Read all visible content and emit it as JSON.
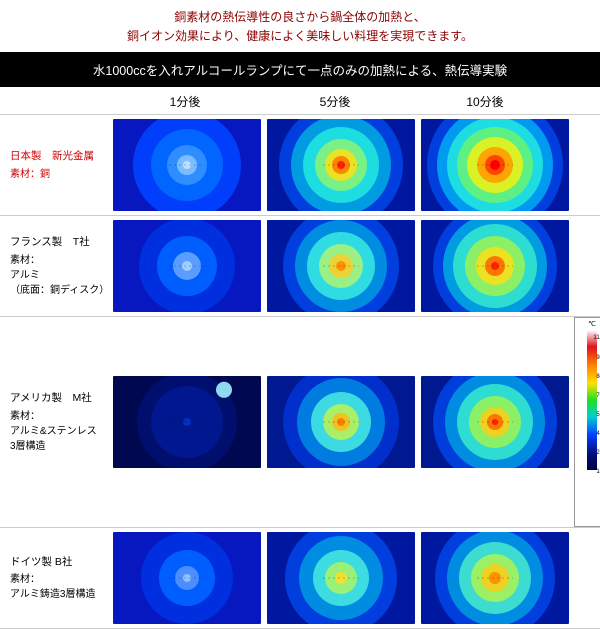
{
  "header": {
    "line1": "銅素材の熱伝導性の良さから鍋全体の加熱と、",
    "line2": "銅イオン効果により、健康によく美味しい料理を実現できます。",
    "line1_color": "#8b0000",
    "line2_color": "#8b0000"
  },
  "title_bar": "水1000ccを入れアルコールランプにて一点のみの加熱による、熱伝導実験",
  "time_headers": [
    "1分後",
    "5分後",
    "10分後"
  ],
  "rows": [
    {
      "maker": "日本製　新光金属",
      "material": "素材：銅",
      "red": true,
      "cells": [
        {
          "bg": "#0818c0",
          "rings": [
            {
              "r": 54,
              "c": "#0040ff"
            },
            {
              "r": 36,
              "c": "#0068ff"
            },
            {
              "r": 20,
              "c": "#3090ff"
            },
            {
              "r": 10,
              "c": "#80c0ff"
            }
          ],
          "core": {
            "r": 4,
            "c": "#c0e0ff"
          }
        },
        {
          "bg": "#0018a0",
          "rings": [
            {
              "r": 62,
              "c": "#0040e0"
            },
            {
              "r": 50,
              "c": "#00a0e0"
            },
            {
              "r": 38,
              "c": "#20e0e0"
            },
            {
              "r": 26,
              "c": "#80f080"
            },
            {
              "r": 16,
              "c": "#f0e020"
            },
            {
              "r": 9,
              "c": "#ff8000"
            }
          ],
          "core": {
            "r": 4,
            "c": "#ff2000"
          }
        },
        {
          "bg": "#0018a0",
          "rings": [
            {
              "r": 68,
              "c": "#0040e0"
            },
            {
              "r": 58,
              "c": "#00a0f0"
            },
            {
              "r": 48,
              "c": "#20e0e0"
            },
            {
              "r": 38,
              "c": "#60f080"
            },
            {
              "r": 28,
              "c": "#e0f020"
            },
            {
              "r": 18,
              "c": "#ffa000"
            },
            {
              "r": 10,
              "c": "#ff4000"
            }
          ],
          "core": {
            "r": 5,
            "c": "#ff0000"
          }
        }
      ]
    },
    {
      "maker": "フランス製　T社",
      "material": "素材：<br>アルミ<br>（底面：銅ディスク）",
      "red": false,
      "cells": [
        {
          "bg": "#0818c0",
          "rings": [
            {
              "r": 48,
              "c": "#0030e0"
            },
            {
              "r": 30,
              "c": "#0060ff"
            },
            {
              "r": 14,
              "c": "#60a0ff"
            }
          ],
          "core": {
            "r": 5,
            "c": "#a0d0ff"
          }
        },
        {
          "bg": "#0018a0",
          "rings": [
            {
              "r": 58,
              "c": "#0040e0"
            },
            {
              "r": 46,
              "c": "#0090e0"
            },
            {
              "r": 34,
              "c": "#30e0e0"
            },
            {
              "r": 22,
              "c": "#a0f080"
            },
            {
              "r": 12,
              "c": "#f0d030"
            }
          ],
          "core": {
            "r": 5,
            "c": "#ff9000"
          }
        },
        {
          "bg": "#0018a0",
          "rings": [
            {
              "r": 62,
              "c": "#0040e0"
            },
            {
              "r": 52,
              "c": "#00a0e0"
            },
            {
              "r": 42,
              "c": "#30e0d0"
            },
            {
              "r": 30,
              "c": "#90f060"
            },
            {
              "r": 19,
              "c": "#f0e020"
            },
            {
              "r": 10,
              "c": "#ff7000"
            }
          ],
          "core": {
            "r": 4,
            "c": "#ff2000"
          }
        }
      ]
    },
    {
      "maker": "アメリカ製　M社",
      "material": "素材：<br>アルミ&ステンレス<br>3層構造",
      "red": false,
      "cells": [
        {
          "bg": "#000850",
          "rings": [
            {
              "r": 50,
              "c": "#001070"
            },
            {
              "r": 36,
              "c": "#001890",
              "edge": true
            }
          ],
          "core": {
            "r": 4,
            "c": "#0030c0"
          },
          "spot": {
            "x": 75,
            "y": 15,
            "r": 8,
            "c": "#a0f0ff"
          }
        },
        {
          "bg": "#001890",
          "rings": [
            {
              "r": 58,
              "c": "#0030d0"
            },
            {
              "r": 44,
              "c": "#0080e0"
            },
            {
              "r": 30,
              "c": "#40e0e0"
            },
            {
              "r": 18,
              "c": "#b0f060"
            },
            {
              "r": 9,
              "c": "#f0c020"
            }
          ],
          "core": {
            "r": 4,
            "c": "#ff8000"
          }
        },
        {
          "bg": "#001890",
          "rings": [
            {
              "r": 62,
              "c": "#0040e0"
            },
            {
              "r": 50,
              "c": "#0090e0"
            },
            {
              "r": 38,
              "c": "#30e0d0"
            },
            {
              "r": 26,
              "c": "#90f060"
            },
            {
              "r": 15,
              "c": "#f0d020"
            },
            {
              "r": 8,
              "c": "#ff7000"
            }
          ],
          "core": {
            "r": 3,
            "c": "#ff2000"
          }
        }
      ]
    },
    {
      "maker": "ドイツ製 B社",
      "material": "素材：<br>アルミ鋳造3層構造",
      "red": false,
      "cells": [
        {
          "bg": "#0818c0",
          "rings": [
            {
              "r": 46,
              "c": "#0030e0"
            },
            {
              "r": 28,
              "c": "#0060ff"
            },
            {
              "r": 12,
              "c": "#5090ff"
            }
          ],
          "core": {
            "r": 4,
            "c": "#90c0ff"
          }
        },
        {
          "bg": "#0018a0",
          "rings": [
            {
              "r": 56,
              "c": "#0040e0"
            },
            {
              "r": 42,
              "c": "#0090e0"
            },
            {
              "r": 28,
              "c": "#40e0e0"
            },
            {
              "r": 16,
              "c": "#a0f070"
            }
          ],
          "core": {
            "r": 6,
            "c": "#f0e030"
          }
        },
        {
          "bg": "#0018a0",
          "rings": [
            {
              "r": 60,
              "c": "#0040e0"
            },
            {
              "r": 48,
              "c": "#0090e0"
            },
            {
              "r": 36,
              "c": "#40e0d0"
            },
            {
              "r": 24,
              "c": "#a0f060"
            },
            {
              "r": 14,
              "c": "#f0d020"
            }
          ],
          "core": {
            "r": 6,
            "c": "#ff9000"
          }
        }
      ]
    }
  ],
  "scale": {
    "unit": "℃",
    "values": [
      "112.7",
      "98.6",
      "84.5",
      "70.4",
      "56.3",
      "42.3",
      "28.2",
      "14.1"
    ]
  }
}
